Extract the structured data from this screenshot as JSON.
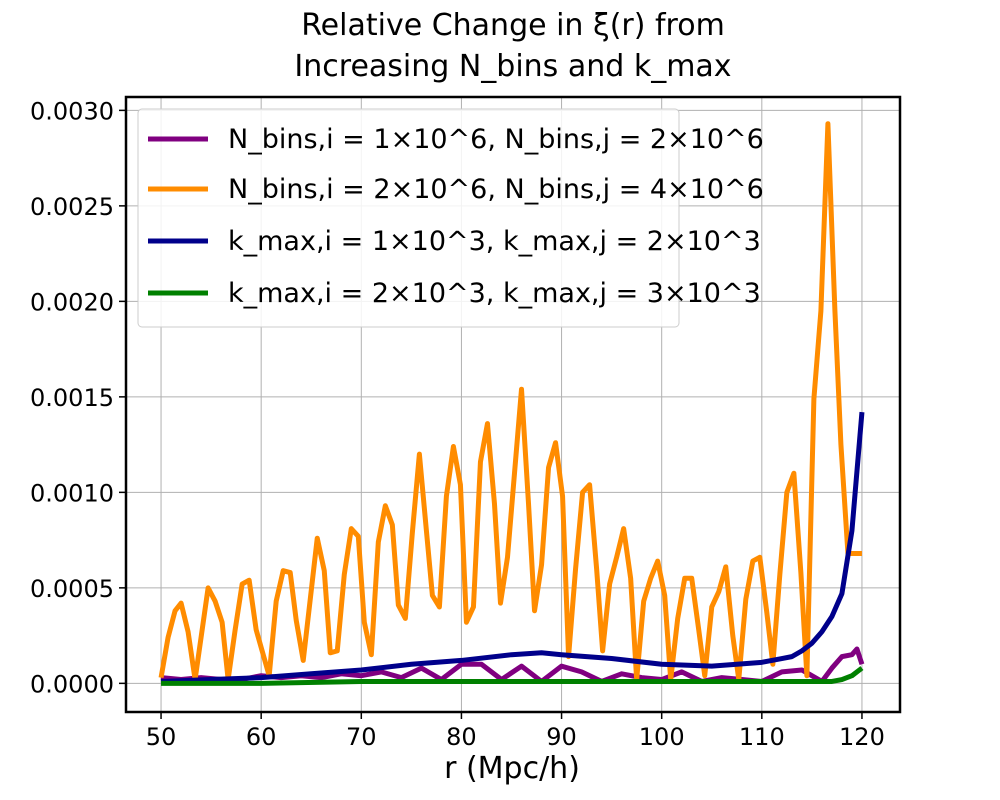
{
  "chart_data": {
    "type": "line",
    "title_line1": "Relative Change in ξ(r) from",
    "title_line2": "Increasing N_bins and k_max",
    "xlabel": "r (Mpc/h)",
    "ylabel": "",
    "xlim": [
      46.5,
      123.8
    ],
    "ylim": [
      -0.00015,
      0.00307
    ],
    "xticks": [
      50,
      60,
      70,
      80,
      90,
      100,
      110,
      120
    ],
    "xtick_labels": [
      "50",
      "60",
      "70",
      "80",
      "90",
      "100",
      "110",
      "120"
    ],
    "yticks": [
      0.0,
      0.0005,
      0.001,
      0.0015,
      0.002,
      0.0025,
      0.003
    ],
    "ytick_labels": [
      "0.0000",
      "0.0005",
      "0.0010",
      "0.0015",
      "0.0020",
      "0.0025",
      "0.0030"
    ],
    "grid": true,
    "legend_position": "upper-left",
    "series": [
      {
        "name": "N_bins,i = 1×10^6, N_bins,j = 2×10^6",
        "color": "#800080",
        "x": [
          50,
          52,
          54,
          56,
          58,
          60,
          62,
          64,
          66,
          68,
          70,
          72,
          74,
          76,
          78,
          80,
          82,
          84,
          86,
          88,
          90,
          92,
          94,
          96,
          98,
          100,
          102,
          104,
          106,
          108,
          110,
          112,
          114,
          116,
          117,
          118,
          119,
          119.5,
          120
        ],
        "values": [
          3e-05,
          2e-05,
          3e-05,
          2e-05,
          2e-05,
          4e-05,
          3e-05,
          4e-05,
          3e-05,
          5e-05,
          4e-05,
          6e-05,
          3e-05,
          8e-05,
          2e-05,
          0.0001,
          0.0001,
          2e-05,
          9e-05,
          1e-05,
          9e-05,
          6e-05,
          1e-05,
          5e-05,
          3e-05,
          2e-05,
          6e-05,
          1e-05,
          3e-05,
          2e-05,
          1e-05,
          6e-05,
          7e-05,
          1e-05,
          8e-05,
          0.00014,
          0.00015,
          0.00018,
          0.0001
        ]
      },
      {
        "name": "N_bins,i = 2×10^6, N_bins,j = 4×10^6",
        "color": "#ff8c00",
        "x": [
          50,
          50.7,
          51.4,
          52,
          52.7,
          53.4,
          54.7,
          55.4,
          56.1,
          56.7,
          57.4,
          58.1,
          58.8,
          59.5,
          60.8,
          61.5,
          62.2,
          62.9,
          63.5,
          64.2,
          65.6,
          66.3,
          66.9,
          67.6,
          68.3,
          69,
          69.7,
          70.3,
          71,
          71.7,
          72.4,
          73.1,
          73.7,
          74.4,
          75.1,
          75.8,
          76.5,
          77.1,
          77.8,
          78.5,
          79.2,
          79.9,
          80.5,
          81.2,
          81.9,
          82.6,
          83.3,
          83.9,
          84.6,
          85.3,
          86,
          86.7,
          87.3,
          88,
          88.7,
          89.4,
          90.1,
          90.7,
          91.4,
          92.1,
          92.8,
          93.5,
          94.1,
          94.8,
          95.5,
          96.2,
          96.9,
          97.5,
          98.2,
          98.9,
          99.6,
          100.3,
          100.9,
          101.6,
          102.3,
          103,
          103.7,
          104.3,
          105,
          105.7,
          106.4,
          107.1,
          107.7,
          108.4,
          109.1,
          109.8,
          110.5,
          111.1,
          111.8,
          112.5,
          113.2,
          113.9,
          114.5,
          115.2,
          115.9,
          116.6,
          117.3,
          117.9,
          118.6,
          119.3,
          120
        ],
        "values": [
          3e-05,
          0.00024,
          0.00038,
          0.00042,
          0.00027,
          2e-05,
          0.0005,
          0.00043,
          0.00032,
          2e-05,
          0.00028,
          0.00052,
          0.00054,
          0.00028,
          4e-05,
          0.00043,
          0.00059,
          0.00058,
          0.00033,
          0.00012,
          0.00076,
          0.00059,
          0.00016,
          0.00017,
          0.00057,
          0.00081,
          0.00077,
          0.00032,
          0.00015,
          0.00074,
          0.00093,
          0.00083,
          0.00041,
          0.00034,
          0.00079,
          0.0012,
          0.0008,
          0.00046,
          0.0004,
          0.00098,
          0.00124,
          0.00104,
          0.00032,
          0.0004,
          0.00116,
          0.00136,
          0.00094,
          0.00042,
          0.00066,
          0.0011,
          0.00154,
          0.00094,
          0.00038,
          0.00062,
          0.00113,
          0.00126,
          0.00098,
          0.00014,
          0.0006,
          0.001,
          0.00104,
          0.0006,
          0.00017,
          0.00052,
          0.00066,
          0.00081,
          0.00055,
          2e-05,
          0.00043,
          0.00055,
          0.00064,
          0.00046,
          2e-05,
          0.00034,
          0.00055,
          0.00055,
          0.00028,
          4e-05,
          0.0004,
          0.00048,
          0.00061,
          0.00025,
          2e-05,
          0.00044,
          0.00064,
          0.00066,
          0.00037,
          0.0001,
          0.00057,
          0.001,
          0.0011,
          0.00058,
          4e-05,
          0.00149,
          0.00195,
          0.00293,
          0.00195,
          0.00125,
          0.00068,
          0.00068,
          0.00068
        ]
      },
      {
        "name": "k_max,i = 1×10^3, k_max,j = 2×10^3",
        "color": "#00008b",
        "x": [
          50,
          55,
          60,
          65,
          70,
          75,
          80,
          85,
          88,
          90,
          95,
          100,
          105,
          110,
          112,
          113,
          114,
          115,
          116,
          117,
          118,
          119,
          120
        ],
        "values": [
          1e-05,
          2e-05,
          3e-05,
          5e-05,
          7e-05,
          0.0001,
          0.00012,
          0.00015,
          0.00016,
          0.00015,
          0.00013,
          0.0001,
          9e-05,
          0.00011,
          0.00013,
          0.00014,
          0.00017,
          0.00021,
          0.00027,
          0.00035,
          0.00047,
          0.0008,
          0.00142
        ]
      },
      {
        "name": "k_max,i = 2×10^3, k_max,j = 3×10^3",
        "color": "#008000",
        "x": [
          50,
          60,
          70,
          80,
          90,
          100,
          110,
          114,
          116,
          117,
          118,
          119,
          120
        ],
        "values": [
          0.0,
          0.0,
          1e-05,
          1e-05,
          1e-05,
          1e-05,
          1e-05,
          1e-05,
          1e-05,
          1e-05,
          2e-05,
          4e-05,
          8e-05
        ]
      }
    ]
  }
}
